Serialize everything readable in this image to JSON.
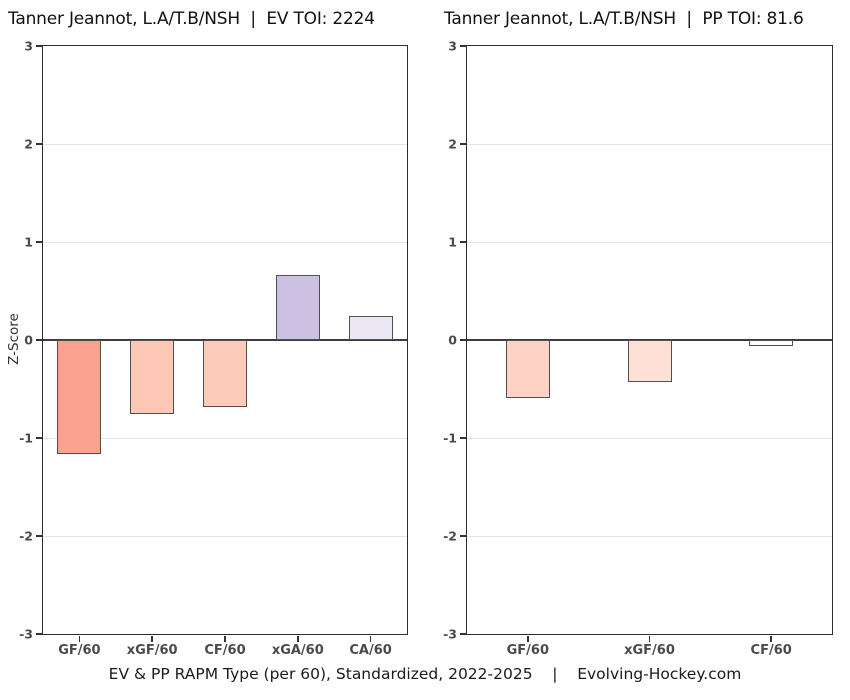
{
  "figure": {
    "ylabel": "Z-Score",
    "caption": "EV & PP RAPM Type (per 60), Standardized, 2022-2025    |    Evolving-Hockey.com"
  },
  "chart_data": [
    {
      "type": "bar",
      "title": "Tanner Jeannot, L.A/T.B/NSH  |  EV TOI: 2224",
      "categories": [
        "GF/60",
        "xGF/60",
        "CF/60",
        "xGA/60",
        "CA/60"
      ],
      "values": [
        -1.16,
        -0.76,
        -0.68,
        0.66,
        0.24
      ],
      "bar_colors": [
        "#f9a28f",
        "#fdc8b5",
        "#fdcab9",
        "#ccc1e2",
        "#ebe6f3"
      ],
      "ylabel": "Z-Score",
      "ylim": [
        -3,
        3
      ],
      "yticks": [
        3,
        2,
        1,
        0,
        -1,
        -2,
        -3
      ],
      "grid": true,
      "legend": "none"
    },
    {
      "type": "bar",
      "title": "Tanner Jeannot, L.A/T.B/NSH  |  PP TOI: 81.6",
      "categories": [
        "GF/60",
        "xGF/60",
        "CF/60"
      ],
      "values": [
        -0.59,
        -0.43,
        -0.06
      ],
      "bar_colors": [
        "#fdd3c5",
        "#fee0d6",
        "#fefbfa"
      ],
      "ylabel": "Z-Score",
      "ylim": [
        -3,
        3
      ],
      "yticks": [
        3,
        2,
        1,
        0,
        -1,
        -2,
        -3
      ],
      "grid": true,
      "legend": "none"
    }
  ]
}
